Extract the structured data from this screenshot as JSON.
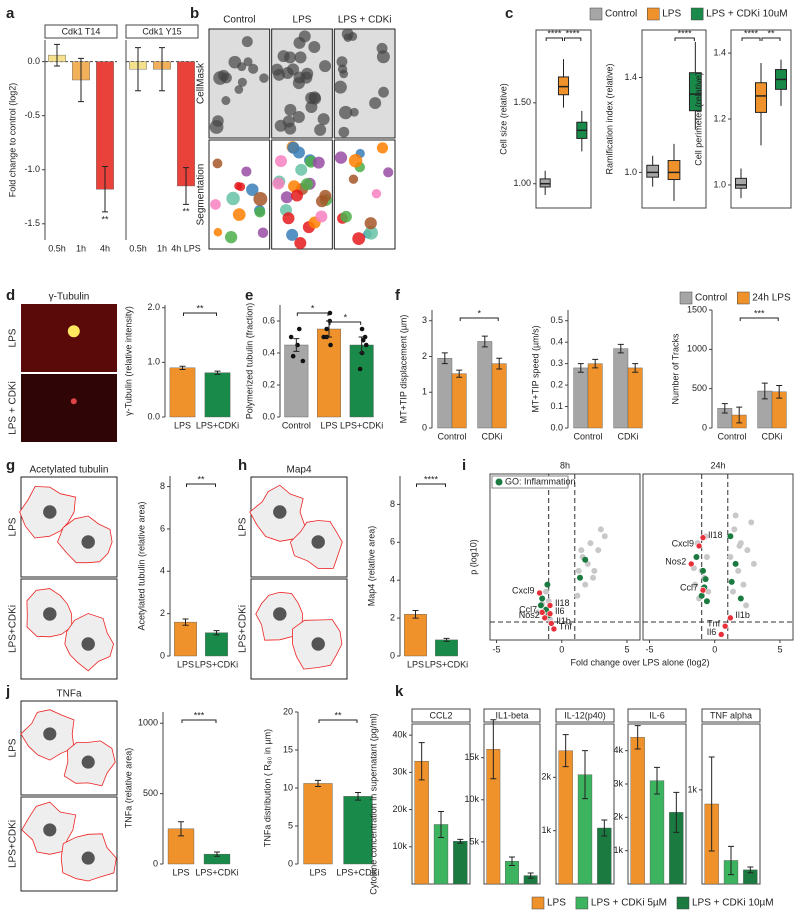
{
  "chart_data": [
    {
      "type": "bar",
      "panel": "a",
      "title": "Cdk1 T14",
      "ylabel": "Fold change to control (log2)",
      "categories": [
        "0.5h",
        "1h",
        "4h"
      ],
      "ylim": [
        -1.65,
        0.2
      ],
      "yticks": [
        -1.5,
        {
          "value": -1,
          "label": "-1.0"
        },
        -0.5,
        {
          "value": 0,
          "label": "0.0"
        }
      ],
      "series": [
        {
          "colors": [
            "#f5e08c",
            "#f2b05a",
            "#e8423a"
          ],
          "values": [
            0.06,
            -0.17,
            -1.18
          ],
          "errors": [
            0.1,
            0.2,
            0.21
          ]
        }
      ],
      "annotations": [
        "**"
      ]
    },
    {
      "type": "bar",
      "title": "Cdk1 Y15",
      "categories": [
        "0.5h",
        "1h",
        "4h LPS"
      ],
      "ylim": [
        -1.65,
        0.2
      ],
      "series": [
        {
          "colors": [
            "#f5e08c",
            "#f2b05a",
            "#e8423a"
          ],
          "values": [
            -0.07,
            -0.07,
            -1.15
          ],
          "errors": [
            0.2,
            0.2,
            0.17
          ]
        }
      ],
      "annotations": [
        "**"
      ]
    },
    {
      "type": "image",
      "panel": "b",
      "columns": [
        "Control",
        "LPS",
        "LPS + CDKi"
      ],
      "rows": [
        "CellMask",
        "Segmentation"
      ]
    },
    {
      "type": "legend",
      "panel": "c",
      "series": [
        {
          "name": "Control",
          "color": "#a6a6a6"
        },
        {
          "name": "LPS",
          "color": "#f0922b"
        },
        {
          "name": "LPS + CDKi 10uM",
          "color": "#1a8a4a"
        }
      ]
    },
    {
      "type": "box",
      "ylabel": "Cell size (relative)",
      "ylim": [
        0.85,
        1.95
      ],
      "yticks": [
        {
          "value": 1,
          "label": "1.00"
        },
        {
          "value": 1.5,
          "label": "1.50"
        }
      ],
      "colors": [
        "#a6a6a6",
        "#f0922b",
        "#1a8a4a"
      ],
      "boxes": [
        {
          "min": 0.93,
          "q1": 0.98,
          "median": 1.0,
          "q3": 1.03,
          "max": 1.08
        },
        {
          "min": 1.47,
          "q1": 1.55,
          "median": 1.6,
          "q3": 1.66,
          "max": 1.77
        },
        {
          "min": 1.2,
          "q1": 1.28,
          "median": 1.33,
          "q3": 1.38,
          "max": 1.45
        }
      ],
      "annotations": [
        "****",
        "****"
      ]
    },
    {
      "type": "box",
      "ylabel": "Ramification index (relative)",
      "ylim": [
        0.85,
        1.6
      ],
      "yticks": [
        {
          "value": 1,
          "label": "1.0"
        },
        1.4
      ],
      "colors": [
        "#a6a6a6",
        "#f0922b",
        "#1a8a4a"
      ],
      "boxes": [
        {
          "min": 0.94,
          "q1": 0.98,
          "median": 1.0,
          "q3": 1.03,
          "max": 1.07
        },
        {
          "min": 0.88,
          "q1": 0.97,
          "median": 1.0,
          "q3": 1.05,
          "max": 1.12
        },
        {
          "min": 1.18,
          "q1": 1.26,
          "median": 1.33,
          "q3": 1.42,
          "max": 1.55
        }
      ],
      "annotations": [
        "****"
      ]
    },
    {
      "type": "box",
      "ylabel": "Cell perimeter (relative)",
      "ylim": [
        0.93,
        1.47
      ],
      "yticks": [
        {
          "value": 1,
          "label": "1.0"
        },
        1.2,
        1.4
      ],
      "colors": [
        "#a6a6a6",
        "#f0922b",
        "#1a8a4a"
      ],
      "boxes": [
        {
          "min": 0.96,
          "q1": 0.99,
          "median": 1.0,
          "q3": 1.02,
          "max": 1.05
        },
        {
          "min": 1.12,
          "q1": 1.22,
          "median": 1.27,
          "q3": 1.31,
          "max": 1.37
        },
        {
          "min": 1.24,
          "q1": 1.29,
          "median": 1.32,
          "q3": 1.35,
          "max": 1.38
        }
      ],
      "annotations": [
        "****",
        "**"
      ]
    },
    {
      "type": "image",
      "panel": "d",
      "title": "γ-Tubulin",
      "rows": [
        "LPS",
        "LPS + CDKi"
      ]
    },
    {
      "type": "bar",
      "ylabel": "γ-Tubulin (relative intensity)",
      "categories": [
        "LPS",
        "LPS+CDKi"
      ],
      "ylim": [
        0,
        2.05
      ],
      "yticks": [
        {
          "value": 0,
          "label": "0.0"
        },
        {
          "value": 1,
          "label": "1.0"
        },
        {
          "value": 2,
          "label": "2.0"
        }
      ],
      "series": [
        {
          "colors": [
            "#f0922b",
            "#1a8a4a"
          ],
          "values": [
            0.9,
            0.81
          ],
          "errors": [
            0.03,
            0.03
          ]
        }
      ],
      "annotations": [
        "**"
      ]
    },
    {
      "type": "bar",
      "panel": "e",
      "ylabel": "Polymerized tubulin (fraction)",
      "categories": [
        "Control",
        "LPS",
        "LPS+CDKi"
      ],
      "ylim": [
        0,
        0.7
      ],
      "yticks": [
        {
          "value": 0,
          "label": "0.0"
        },
        0.2,
        0.4,
        0.6
      ],
      "series": [
        {
          "colors": [
            "#a6a6a6",
            "#f0922b",
            "#1a8a4a"
          ],
          "values": [
            0.45,
            0.55,
            0.45
          ],
          "errors": [
            0.04,
            0.05,
            0.05
          ],
          "points": [
            [
              0.38,
              0.45,
              0.5,
              0.55,
              0.35
            ],
            [
              0.45,
              0.5,
              0.55,
              0.6,
              0.65,
              0.5
            ],
            [
              0.3,
              0.45,
              0.5,
              0.55,
              0.4,
              0.48
            ]
          ]
        }
      ],
      "annotations": [
        "*",
        "*"
      ]
    },
    {
      "type": "bar",
      "panel": "f",
      "ylabel": "MT+TIP displacement (µm)",
      "categories": [
        "Control",
        "CDKi"
      ],
      "ylim": [
        0,
        3.3
      ],
      "yticks": [
        0,
        1,
        2,
        3
      ],
      "series": [
        {
          "color": "#a6a6a6",
          "values": [
            1.95,
            2.42
          ],
          "errors": [
            0.15,
            0.15
          ]
        },
        {
          "color": "#f0922b",
          "values": [
            1.52,
            1.8
          ],
          "errors": [
            0.1,
            0.15
          ]
        }
      ],
      "annotations": [
        "*"
      ]
    },
    {
      "type": "bar",
      "ylabel": "MT+TIP speed (µm/s)",
      "categories": [
        "Control",
        "CDKi"
      ],
      "ylim": [
        0,
        0.55
      ],
      "yticks": [
        {
          "value": 0,
          "label": "0.0"
        },
        0.1,
        0.2,
        0.3,
        0.4,
        0.5
      ],
      "series": [
        {
          "color": "#a6a6a6",
          "values": [
            0.28,
            0.37
          ],
          "errors": [
            0.02,
            0.02
          ]
        },
        {
          "color": "#f0922b",
          "values": [
            0.3,
            0.28
          ],
          "errors": [
            0.02,
            0.02
          ]
        }
      ]
    },
    {
      "type": "legend",
      "series": [
        {
          "name": "Control",
          "color": "#a6a6a6"
        },
        {
          "name": "24h LPS",
          "color": "#f0922b"
        }
      ]
    },
    {
      "type": "bar",
      "ylabel": "Number of Tracks",
      "categories": [
        "Control",
        "CDKi"
      ],
      "ylim": [
        0,
        1500
      ],
      "yticks": [
        0,
        500,
        1000,
        1500
      ],
      "series": [
        {
          "color": "#a6a6a6",
          "values": [
            250,
            470
          ],
          "errors": [
            60,
            100
          ]
        },
        {
          "color": "#f0922b",
          "values": [
            165,
            460
          ],
          "errors": [
            100,
            80
          ]
        }
      ],
      "annotations": [
        "***"
      ]
    },
    {
      "type": "image",
      "panel": "g",
      "title": "Acetylated tubulin",
      "rows": [
        "LPS",
        "LPS+CDKi"
      ]
    },
    {
      "type": "bar",
      "ylabel": "Acetylated tubulin (relative area)",
      "categories": [
        "LPS",
        "LPS+CDKi"
      ],
      "ylim": [
        0,
        8.5
      ],
      "yticks": [
        0,
        2,
        4,
        6,
        8
      ],
      "series": [
        {
          "colors": [
            "#f0922b",
            "#1a8a4a"
          ],
          "values": [
            1.6,
            1.1
          ],
          "errors": [
            0.15,
            0.1
          ]
        }
      ],
      "annotations": [
        "**"
      ]
    },
    {
      "type": "image",
      "panel": "h",
      "title": "Map4",
      "rows": [
        "LPS",
        "LPS+CDKi"
      ]
    },
    {
      "type": "bar",
      "ylabel": "Map4 (relative area)",
      "categories": [
        "LPS",
        "LPS+CDKi"
      ],
      "ylim": [
        0,
        9.5
      ],
      "yticks": [
        0,
        2,
        4,
        6,
        8
      ],
      "series": [
        {
          "colors": [
            "#f0922b",
            "#1a8a4a"
          ],
          "values": [
            2.2,
            0.85
          ],
          "errors": [
            0.2,
            0.08
          ]
        }
      ],
      "annotations": [
        "****"
      ]
    },
    {
      "type": "scatter",
      "panel": "i",
      "title": "8h",
      "ylabel": "p (log10)",
      "xlim": [
        -5.5,
        6
      ],
      "ylim": [
        0,
        12
      ],
      "xticks": [
        -5,
        0,
        5
      ],
      "xthresholds": [
        -1,
        1
      ],
      "ythreshold": 1.3,
      "series": [
        {
          "color": "#c8c8c8",
          "x": [
            -1.8,
            -1.5,
            -1.2,
            -1.0,
            1.3,
            1.5,
            1.6,
            2.0,
            2.2,
            2.5,
            2.8,
            3.0,
            2.4,
            1.8,
            -1.3,
            -0.9,
            3.3,
            1.2
          ],
          "y": [
            2.0,
            2.6,
            3.5,
            2.8,
            5.0,
            6.5,
            6.0,
            5.5,
            7.0,
            5.0,
            6.5,
            8.0,
            4.5,
            4.0,
            1.8,
            1.5,
            7.5,
            3.2
          ]
        },
        {
          "name": "GO: Inflammation",
          "color": "#1a7a40",
          "x": [
            -1.5,
            -1.2,
            -1.0,
            1.4,
            1.8,
            -1.6,
            -1.1
          ],
          "y": [
            3.0,
            2.2,
            1.8,
            4.5,
            5.8,
            2.5,
            4.0
          ]
        },
        {
          "color": "#e8303a",
          "x": [
            -1.7,
            -1.5,
            -1.3,
            -0.9,
            -0.9,
            -0.8,
            -0.6
          ],
          "y": [
            3.4,
            2.0,
            1.6,
            2.5,
            1.9,
            1.2,
            0.8
          ],
          "labels": [
            "Cxcl9",
            "Ccl7",
            "Nos2",
            "Il18",
            "Il6",
            "Il1b",
            "Tnf"
          ]
        }
      ]
    },
    {
      "type": "scatter",
      "title": "24h",
      "xlabel": "Fold change over LPS alone (log2)",
      "xlim": [
        -5.5,
        6
      ],
      "ylim": [
        0,
        12
      ],
      "xticks": [
        -5,
        0,
        5
      ],
      "xthresholds": [
        -1,
        1
      ],
      "ythreshold": 1.3,
      "series": [
        {
          "color": "#c8c8c8",
          "x": [
            -1.5,
            -1.0,
            -0.8,
            -0.6,
            -0.5,
            -1.2,
            1.2,
            1.5,
            1.8,
            2.0,
            2.2,
            2.5,
            3.0,
            1.4,
            1.6,
            2.8,
            -1.3,
            -0.7,
            2.4,
            1.9,
            -1.6
          ],
          "y": [
            4.0,
            5.0,
            4.5,
            6.0,
            3.5,
            3.0,
            6.0,
            8.0,
            5.0,
            7.0,
            4.0,
            6.5,
            5.5,
            3.5,
            9.0,
            8.5,
            7.0,
            7.5,
            2.5,
            6.8,
            5.2
          ]
        },
        {
          "color": "#1a7a40",
          "x": [
            -1.0,
            -0.8,
            -0.6,
            -0.9,
            1.3,
            1.6,
            2.0,
            -1.4,
            1.2,
            -0.7
          ],
          "y": [
            3.2,
            3.8,
            2.8,
            5.0,
            4.2,
            5.5,
            3.0,
            6.0,
            7.5,
            4.4
          ]
        },
        {
          "color": "#e8303a",
          "x": [
            -0.9,
            -1.2,
            -1.8,
            -0.9,
            1.2,
            0.8,
            0.5
          ],
          "y": [
            7.4,
            6.8,
            5.5,
            3.6,
            1.6,
            1.0,
            0.4
          ],
          "labels": [
            "Il18",
            "Cxcl9",
            "Nos2",
            "Ccl7",
            "Il1b",
            "Tnf",
            "Il6"
          ]
        }
      ]
    },
    {
      "type": "image",
      "panel": "j",
      "title": "TNFa",
      "rows": [
        "LPS",
        "LPS+CDKi"
      ]
    },
    {
      "type": "bar",
      "ylabel": "TNFa (relative area)",
      "categories": [
        "LPS",
        "LPS+CDKi"
      ],
      "ylim": [
        0,
        1080
      ],
      "yticks": [
        0,
        500,
        1000
      ],
      "series": [
        {
          "colors": [
            "#f0922b",
            "#1a8a4a"
          ],
          "values": [
            250,
            70
          ],
          "errors": [
            50,
            15
          ]
        }
      ],
      "annotations": [
        "***"
      ]
    },
    {
      "type": "bar",
      "ylabel": "TNFa distribution ( R₈₀ in µm)",
      "categories": [
        "LPS",
        "LPS+CDKi"
      ],
      "ylim": [
        0,
        20
      ],
      "yticks": [
        0,
        5,
        10,
        15,
        20
      ],
      "series": [
        {
          "colors": [
            "#f0922b",
            "#1a8a4a"
          ],
          "values": [
            10.6,
            8.9
          ],
          "errors": [
            0.4,
            0.5
          ]
        }
      ],
      "annotations": [
        "**"
      ]
    },
    {
      "type": "bar",
      "panel": "k",
      "title": "CCL2",
      "ylabel": "Cytokine concentration in supernatant (pg/ml)",
      "ylim": [
        0,
        43000
      ],
      "yticks": [
        {
          "value": 10000,
          "label": "10k"
        },
        {
          "value": 20000,
          "label": "20k"
        },
        {
          "value": 30000,
          "label": "30k"
        },
        {
          "value": 40000,
          "label": "40k"
        }
      ],
      "series": [
        {
          "colors": [
            "#f0922b",
            "#3cb35f",
            "#1a7a40"
          ],
          "values": [
            33000,
            16000,
            11500
          ],
          "errors": [
            5000,
            3500,
            500
          ]
        }
      ]
    },
    {
      "type": "bar",
      "title": "IL1-beta",
      "ylim": [
        0,
        19000
      ],
      "yticks": [
        {
          "value": 5000,
          "label": "5k"
        },
        {
          "value": 10000,
          "label": "10k"
        },
        {
          "value": 15000,
          "label": "15k"
        }
      ],
      "series": [
        {
          "colors": [
            "#f0922b",
            "#3cb35f",
            "#1a7a40"
          ],
          "values": [
            16000,
            2700,
            1000
          ],
          "errors": [
            3500,
            500,
            300
          ]
        }
      ]
    },
    {
      "type": "bar",
      "title": "IL-12(p40)",
      "ylim": [
        0,
        3000
      ],
      "yticks": [
        {
          "value": 1000,
          "label": "1k"
        },
        {
          "value": 2000,
          "label": "2k"
        }
      ],
      "series": [
        {
          "colors": [
            "#f0922b",
            "#3cb35f",
            "#1a7a40"
          ],
          "values": [
            2500,
            2050,
            1050
          ],
          "errors": [
            300,
            450,
            150
          ]
        }
      ]
    },
    {
      "type": "bar",
      "title": "IL-6",
      "ylim": [
        0,
        4800
      ],
      "yticks": [
        {
          "value": 1000,
          "label": "1k"
        },
        {
          "value": 2000,
          "label": "2k"
        },
        {
          "value": 3000,
          "label": "3k"
        },
        {
          "value": 4000,
          "label": "4k"
        }
      ],
      "series": [
        {
          "colors": [
            "#f0922b",
            "#3cb35f",
            "#1a7a40"
          ],
          "values": [
            4400,
            3100,
            2150
          ],
          "errors": [
            350,
            400,
            600
          ]
        }
      ]
    },
    {
      "type": "bar",
      "title": "TNF alpha",
      "ylim": [
        0,
        1700
      ],
      "yticks": [
        {
          "value": 1000,
          "label": "1k"
        }
      ],
      "series": [
        {
          "colors": [
            "#f0922b",
            "#3cb35f",
            "#1a7a40"
          ],
          "values": [
            850,
            250,
            150
          ],
          "errors": [
            500,
            150,
            30
          ]
        }
      ]
    },
    {
      "type": "legend",
      "series": [
        {
          "name": "LPS",
          "color": "#f0922b"
        },
        {
          "name": "LPS + CDKi 5µM",
          "color": "#3cb35f"
        },
        {
          "name": "LPS + CDKi 10µM",
          "color": "#1a7a40"
        }
      ]
    }
  ]
}
